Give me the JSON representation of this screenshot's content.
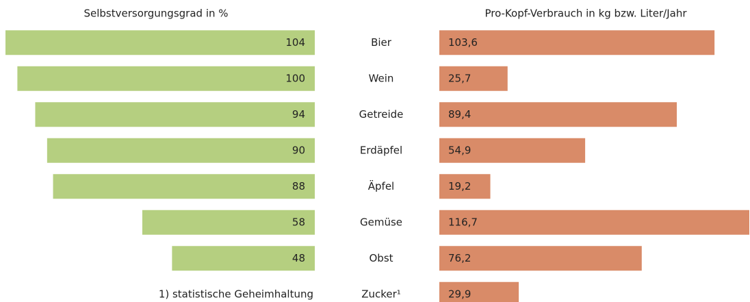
{
  "chart_data": [
    {
      "type": "bar",
      "orientation": "horizontal",
      "direction": "reversed",
      "title": "Selbstversorgungsgrad in %",
      "categories": [
        "Bier",
        "Wein",
        "Getreide",
        "Erdäpfel",
        "Äpfel",
        "Gemüse",
        "Obst",
        "Zucker¹"
      ],
      "values": [
        104,
        100,
        94,
        90,
        88,
        58,
        48,
        null
      ],
      "color": "#b5cf80",
      "annotation": "1) statistische Geheimhaltung"
    },
    {
      "type": "bar",
      "orientation": "horizontal",
      "direction": "normal",
      "title": "Pro-Kopf-Verbrauch in kg bzw. Liter/Jahr",
      "values": [
        103.6,
        25.7,
        89.4,
        54.9,
        19.2,
        116.7,
        76.2,
        29.9
      ],
      "value_labels": [
        "103,6",
        "25,7",
        "89,4",
        "54,9",
        "19,2",
        "116,7",
        "76,2",
        "29,9"
      ],
      "color": "#d98b68"
    }
  ]
}
